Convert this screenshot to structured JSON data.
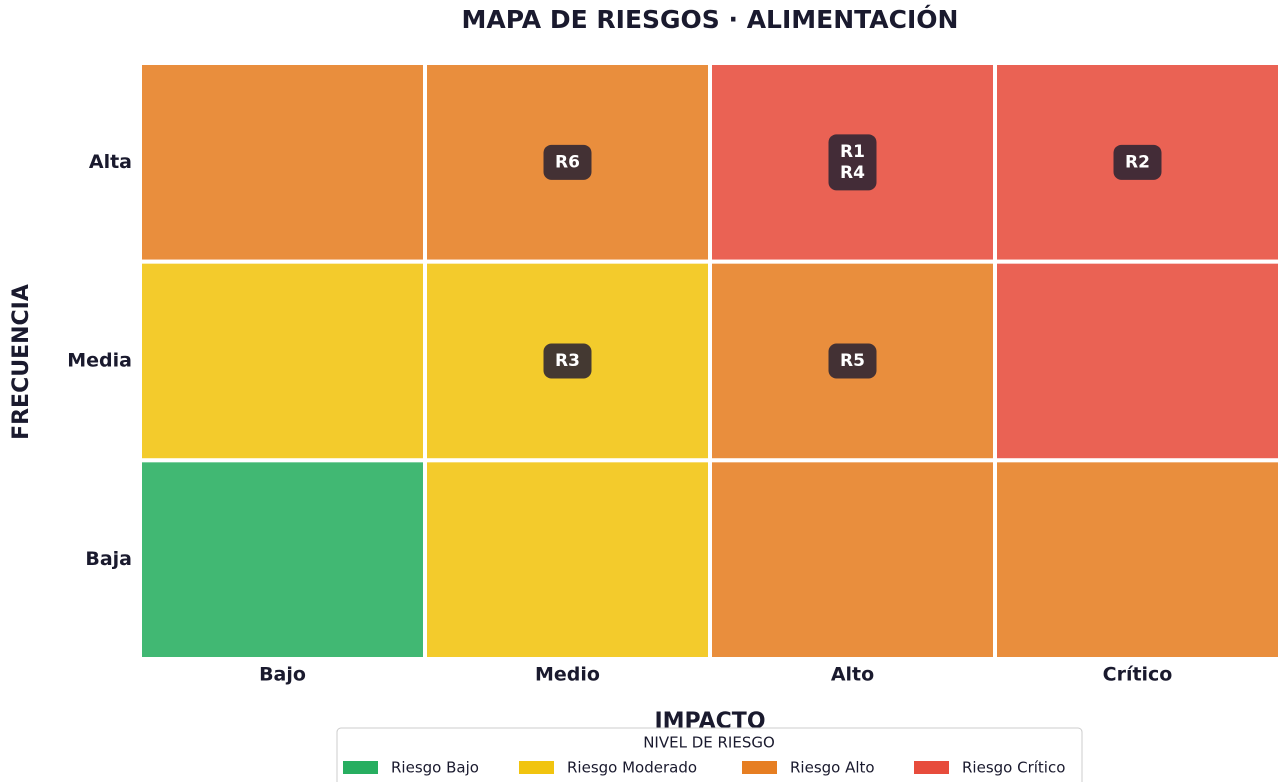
{
  "chart_data": {
    "type": "heatmap",
    "title": "MAPA DE RIESGOS  ·  ALIMENTACIÓN",
    "xlabel": "IMPACTO",
    "ylabel": "FRECUENCIA",
    "x_categories": [
      "Bajo",
      "Medio",
      "Alto",
      "Crítico"
    ],
    "y_categories": [
      "Alta",
      "Media",
      "Baja"
    ],
    "cells": [
      [
        {
          "color": "#e67e22",
          "risks": []
        },
        {
          "color": "#e67e22",
          "risks": [
            "R6"
          ]
        },
        {
          "color": "#e74c3c",
          "risks": [
            "R1",
            "R4"
          ]
        },
        {
          "color": "#e74c3c",
          "risks": [
            "R2"
          ]
        }
      ],
      [
        {
          "color": "#f1c40f",
          "risks": []
        },
        {
          "color": "#f1c40f",
          "risks": [
            "R3"
          ]
        },
        {
          "color": "#e67e22",
          "risks": [
            "R5"
          ]
        },
        {
          "color": "#e74c3c",
          "risks": []
        }
      ],
      [
        {
          "color": "#27ae60",
          "risks": []
        },
        {
          "color": "#f1c40f",
          "risks": []
        },
        {
          "color": "#e67e22",
          "risks": []
        },
        {
          "color": "#e67e22",
          "risks": []
        }
      ]
    ],
    "legend_title": "NIVEL DE RIESGO",
    "series": [
      {
        "name": "Riesgo Bajo",
        "color": "#27ae60"
      },
      {
        "name": "Riesgo Moderado",
        "color": "#f1c40f"
      },
      {
        "name": "Riesgo Alto",
        "color": "#e67e22"
      },
      {
        "name": "Riesgo Crítico",
        "color": "#e74c3c"
      }
    ]
  }
}
